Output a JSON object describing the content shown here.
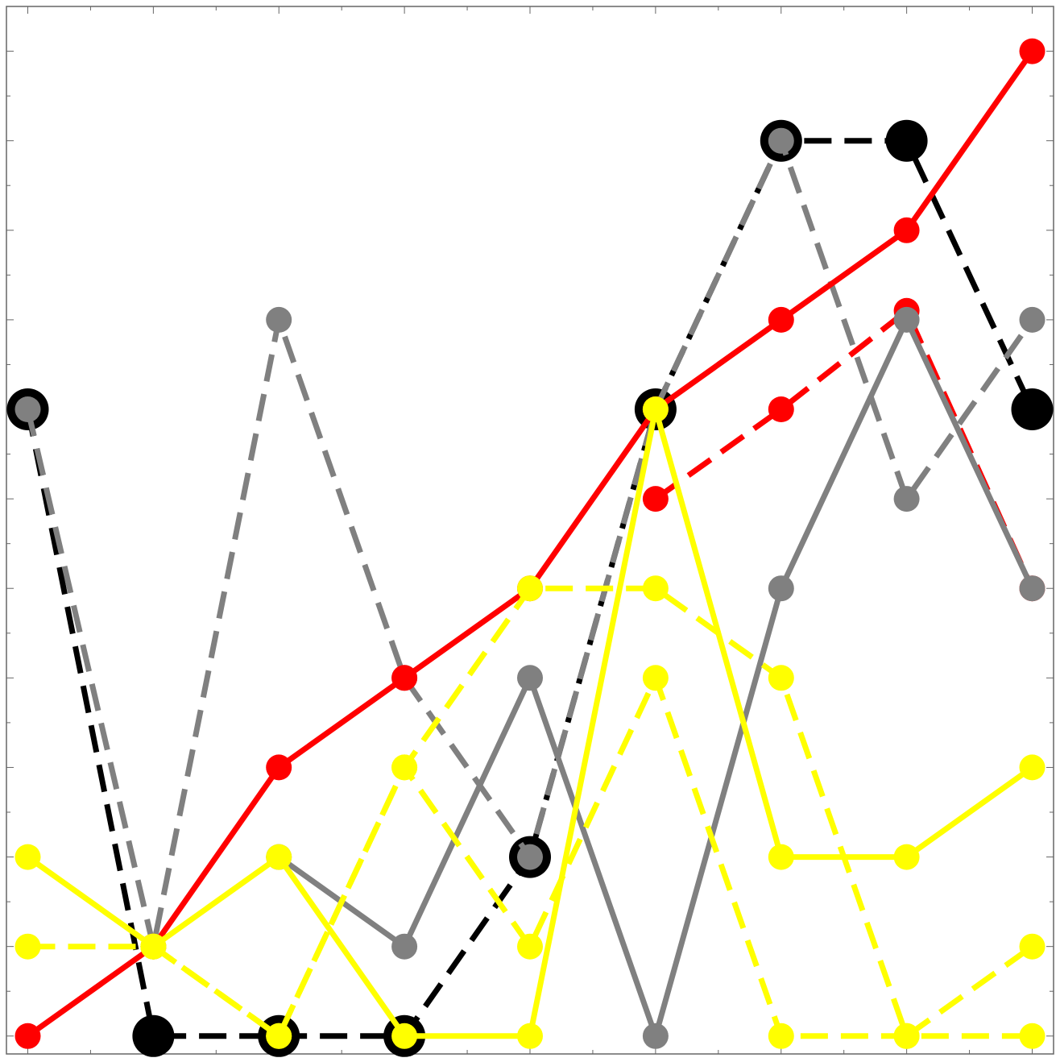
{
  "chart_data": {
    "type": "line",
    "title": "",
    "xlabel": "",
    "ylabel": "",
    "x": [
      1,
      2,
      3,
      4,
      5,
      6,
      7,
      8,
      9
    ],
    "xlim": [
      0.83,
      9.17
    ],
    "ylim": [
      -0.2,
      11.5
    ],
    "grid": false,
    "legend": "none",
    "series": [
      {
        "color": "#000000",
        "dash": true,
        "marker": "large",
        "values": [
          7,
          0,
          0,
          0,
          2,
          7,
          10,
          10,
          7
        ]
      },
      {
        "color": "#808080",
        "dash": true,
        "marker": "small",
        "values": [
          7,
          1,
          8,
          4,
          2,
          7,
          10,
          6,
          8
        ]
      },
      {
        "color": "#ff0000",
        "dash": false,
        "marker": "small",
        "values": [
          0,
          1,
          3,
          4,
          5,
          7,
          8,
          9,
          11
        ]
      },
      {
        "color": "#ff0000",
        "dash": true,
        "marker": "small",
        "values": [
          null,
          null,
          null,
          null,
          null,
          6,
          7,
          8.1,
          5
        ]
      },
      {
        "color": "#808080",
        "dash": false,
        "marker": "small",
        "values": [
          null,
          null,
          2,
          1,
          4,
          0,
          5,
          8,
          5
        ]
      },
      {
        "color": "#ffff00",
        "dash": true,
        "marker": "small",
        "values": [
          1,
          1,
          0,
          3,
          1,
          4,
          0,
          0,
          0
        ]
      },
      {
        "color": "#ffff00",
        "dash": true,
        "marker": "small",
        "values": [
          null,
          1,
          0,
          3,
          5,
          5,
          4,
          0,
          1
        ]
      },
      {
        "color": "#ffff00",
        "dash": false,
        "marker": "small",
        "values": [
          2,
          1,
          2,
          0,
          0,
          7,
          2,
          2,
          3
        ]
      }
    ]
  }
}
